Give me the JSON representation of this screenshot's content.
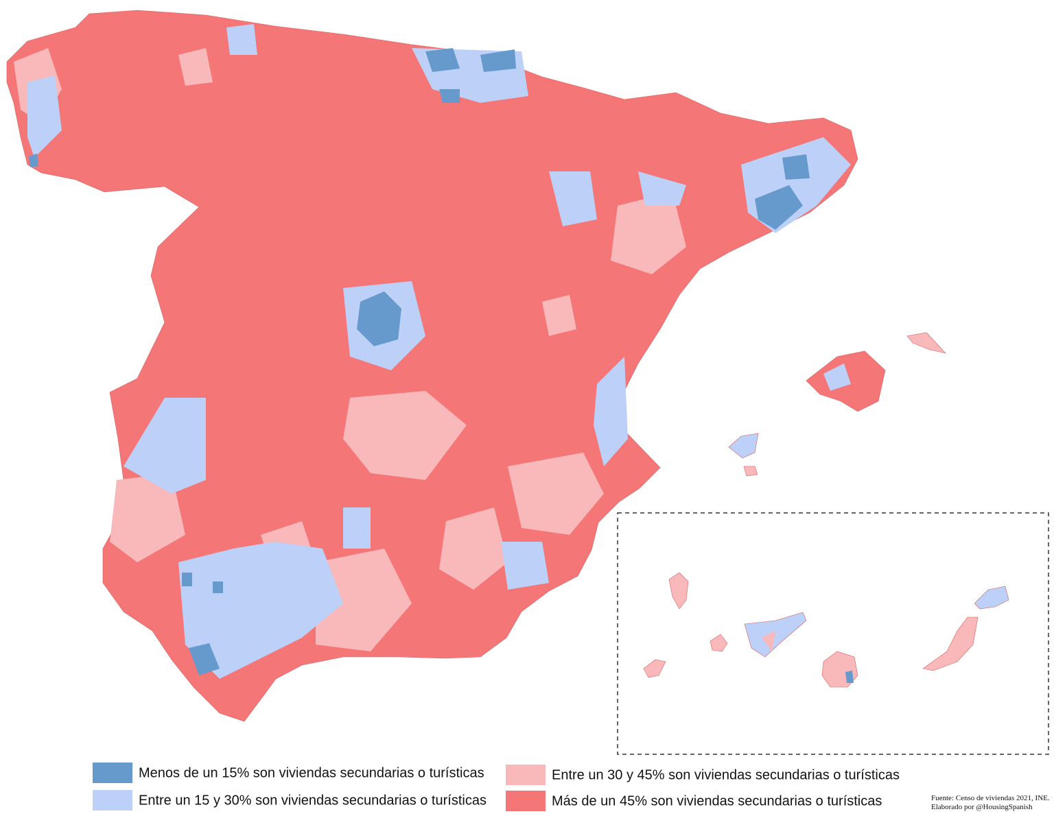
{
  "legend": {
    "items": [
      {
        "label": "Menos de un 15% son viviendas secundarias o turísticas",
        "color": "#6699cc"
      },
      {
        "label": "Entre un 15 y 30% son viviendas secundarias o turísticas",
        "color": "#bcd0f8"
      },
      {
        "label": "Entre un 30 y 45% son viviendas secundarias o turísticas",
        "color": "#f9b8ba"
      },
      {
        "label": "Más de un 45% son viviendas secundarias o turísticas",
        "color": "#f47677"
      }
    ]
  },
  "source": {
    "lines": [
      "Fuente: Censo de viviendas 2021, INE.",
      "Elaborado por @HousingSpanish"
    ]
  }
}
